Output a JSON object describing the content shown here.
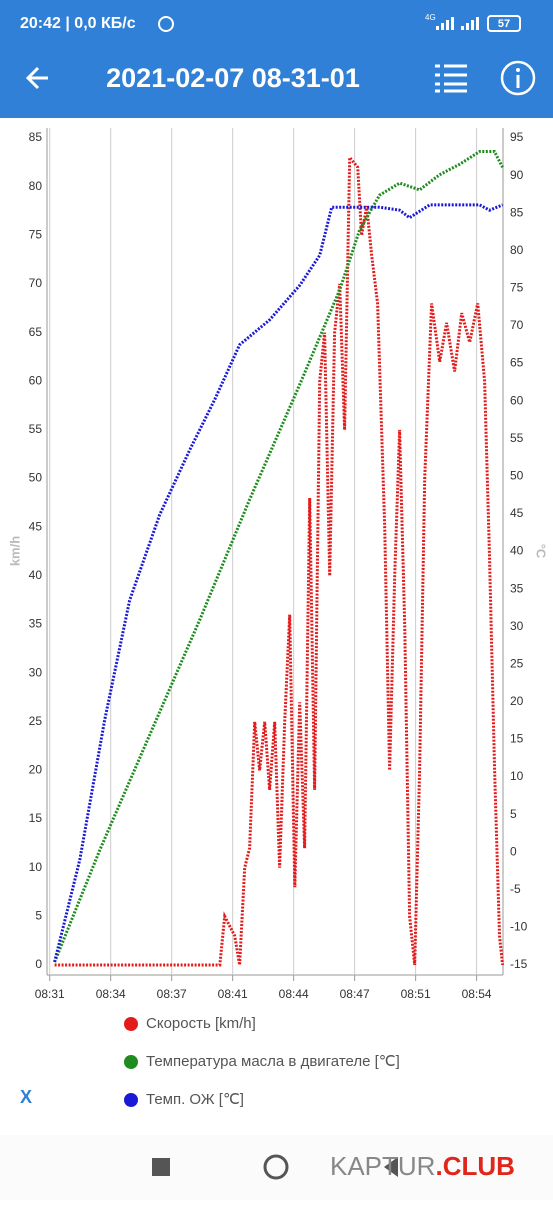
{
  "status_bar": {
    "time_speed": "20:42 | 0,0 КБ/с",
    "network": "4G",
    "battery": "57"
  },
  "header": {
    "title": "2021-02-07 08-31-01"
  },
  "chart_data": {
    "type": "line",
    "y_label": "km/h",
    "y2_label": "°C",
    "xlim": [
      30.85,
      55.9
    ],
    "xticks": [
      {
        "value": 31,
        "label": "08:31"
      },
      {
        "value": 34.35,
        "label": "08:34"
      },
      {
        "value": 37.7,
        "label": "08:37"
      },
      {
        "value": 41.05,
        "label": "08:41"
      },
      {
        "value": 44.4,
        "label": "08:44"
      },
      {
        "value": 47.75,
        "label": "08:47"
      },
      {
        "value": 51.1,
        "label": "08:51"
      },
      {
        "value": 54.45,
        "label": "08:54"
      }
    ],
    "ylim": [
      0,
      85
    ],
    "yticks": [
      0,
      5,
      10,
      15,
      20,
      25,
      30,
      35,
      40,
      45,
      50,
      55,
      60,
      65,
      70,
      75,
      80,
      85
    ],
    "y2lim": [
      -15,
      95
    ],
    "y2ticks": [
      -15,
      -10,
      -5,
      0,
      5,
      10,
      15,
      20,
      25,
      30,
      35,
      40,
      45,
      50,
      55,
      60,
      65,
      70,
      75,
      80,
      85,
      90,
      95
    ],
    "grid": "x",
    "series": [
      {
        "name": "Скорость [km/h]",
        "color": "#e31b1b",
        "x": [
          31.27,
          40.34,
          40.61,
          41.16,
          41.43,
          41.71,
          41.98,
          42.26,
          42.53,
          42.81,
          43.08,
          43.36,
          43.63,
          43.91,
          44.18,
          44.46,
          44.73,
          45.0,
          45.28,
          45.55,
          45.83,
          46.1,
          46.38,
          46.65,
          46.93,
          47.2,
          47.48,
          47.92,
          48.13,
          48.41,
          48.68,
          49.01,
          49.4,
          49.67,
          49.95,
          50.22,
          50.5,
          50.77,
          51.05,
          51.32,
          51.6,
          51.98,
          52.42,
          52.8,
          53.24,
          53.63,
          54.07,
          54.51,
          54.89,
          55.16,
          55.44,
          55.71,
          55.88
        ],
        "values": [
          0,
          0,
          5,
          3,
          0,
          10,
          12,
          25,
          20,
          25,
          18,
          25,
          10,
          25,
          36,
          8,
          27,
          12,
          48,
          18,
          60,
          65,
          40,
          65,
          70,
          55,
          83,
          82,
          75,
          78,
          73,
          68,
          45,
          20,
          40,
          55,
          35,
          5,
          0,
          20,
          50,
          68,
          62,
          66,
          61,
          67,
          64,
          68,
          60,
          42,
          20,
          3,
          0
        ]
      },
      {
        "name": "Температура масла в двигателе [℃]",
        "color": "#1e8c1e",
        "axis": "y2",
        "x": [
          31.27,
          33.75,
          36.49,
          39.24,
          41.98,
          44.73,
          46.93,
          48.03,
          49.12,
          50.22,
          51.32,
          52.41,
          53.51,
          54.62,
          55.43,
          55.88
        ],
        "values": [
          -14.6,
          0.3,
          15.6,
          30.9,
          46.9,
          62.2,
          74.8,
          82.8,
          87.4,
          89.0,
          88.1,
          90.1,
          91.5,
          93.2,
          93.2,
          91.1
        ]
      },
      {
        "name": "Темп. ОЖ [℃]",
        "color": "#1a1ad6",
        "axis": "y2",
        "x": [
          31.27,
          32.65,
          34.02,
          35.39,
          37.04,
          38.69,
          40.06,
          41.43,
          43.08,
          44.73,
          45.83,
          46.49,
          48.03,
          49.12,
          50.22,
          50.77,
          51.87,
          54.62,
          55.16,
          55.88
        ],
        "values": [
          -14.6,
          -1.0,
          17.6,
          33.5,
          44.9,
          53.5,
          60.2,
          67.5,
          70.8,
          75.4,
          79.4,
          85.8,
          85.8,
          85.8,
          85.4,
          84.4,
          86.1,
          86.1,
          85.4,
          86.1
        ]
      }
    ]
  },
  "close_button": "X",
  "watermark": {
    "main": "KAPTUR",
    "accent": ".CLUB"
  }
}
